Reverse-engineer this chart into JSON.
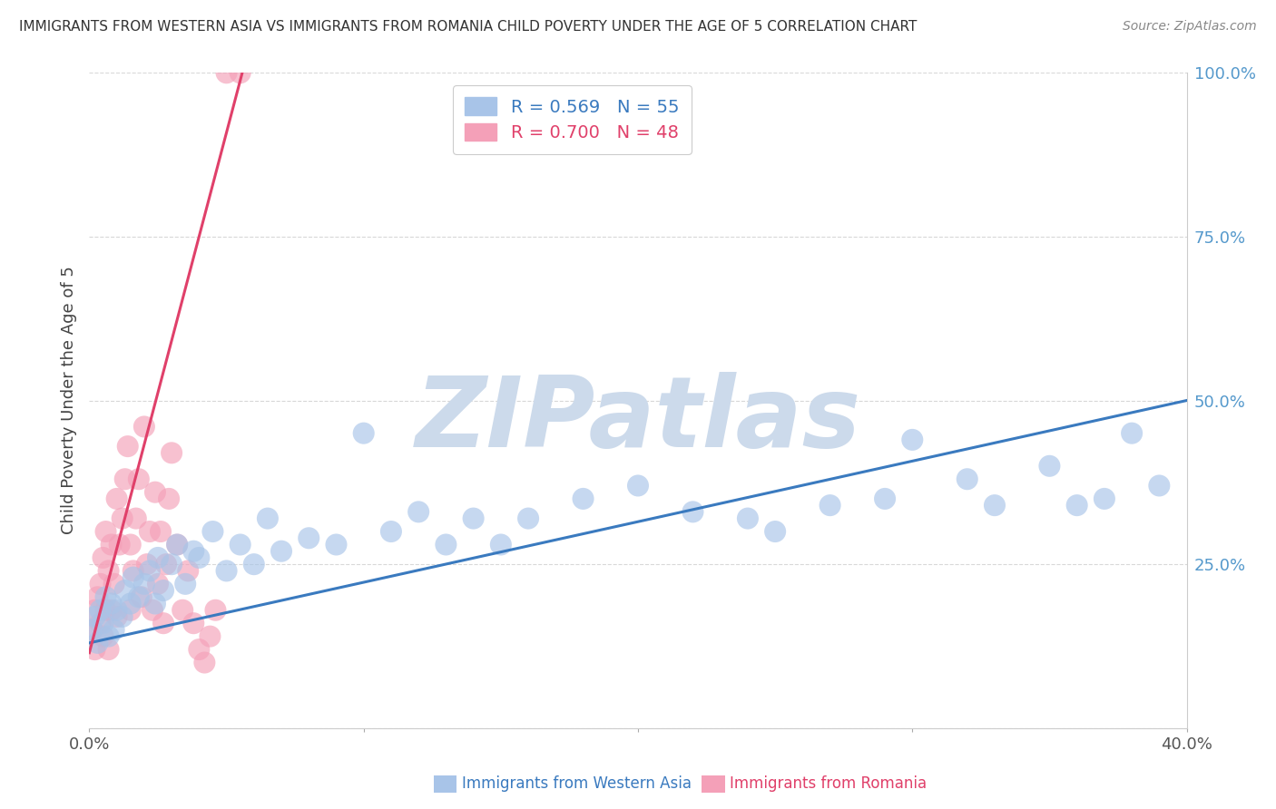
{
  "title": "IMMIGRANTS FROM WESTERN ASIA VS IMMIGRANTS FROM ROMANIA CHILD POVERTY UNDER THE AGE OF 5 CORRELATION CHART",
  "source": "Source: ZipAtlas.com",
  "ylabel_label": "Child Poverty Under the Age of 5",
  "legend_blue_r": "R = 0.569",
  "legend_blue_n": "N = 55",
  "legend_pink_r": "R = 0.700",
  "legend_pink_n": "N = 48",
  "label_blue": "Immigrants from Western Asia",
  "label_pink": "Immigrants from Romania",
  "blue_color": "#a8c4e8",
  "pink_color": "#f4a0b8",
  "blue_line_color": "#3a7abf",
  "pink_line_color": "#e0406a",
  "blue_scatter_x": [
    0.001,
    0.002,
    0.003,
    0.004,
    0.005,
    0.006,
    0.007,
    0.008,
    0.009,
    0.01,
    0.012,
    0.013,
    0.015,
    0.016,
    0.018,
    0.02,
    0.022,
    0.024,
    0.025,
    0.027,
    0.03,
    0.032,
    0.035,
    0.038,
    0.04,
    0.045,
    0.05,
    0.055,
    0.06,
    0.065,
    0.07,
    0.08,
    0.09,
    0.1,
    0.11,
    0.12,
    0.13,
    0.14,
    0.15,
    0.16,
    0.18,
    0.2,
    0.22,
    0.24,
    0.25,
    0.27,
    0.29,
    0.3,
    0.32,
    0.33,
    0.35,
    0.36,
    0.37,
    0.38,
    0.39
  ],
  "blue_scatter_y": [
    0.15,
    0.17,
    0.13,
    0.18,
    0.16,
    0.2,
    0.14,
    0.19,
    0.15,
    0.18,
    0.17,
    0.21,
    0.19,
    0.23,
    0.2,
    0.22,
    0.24,
    0.19,
    0.26,
    0.21,
    0.25,
    0.28,
    0.22,
    0.27,
    0.26,
    0.3,
    0.24,
    0.28,
    0.25,
    0.32,
    0.27,
    0.29,
    0.28,
    0.45,
    0.3,
    0.33,
    0.28,
    0.32,
    0.28,
    0.32,
    0.35,
    0.37,
    0.33,
    0.32,
    0.3,
    0.34,
    0.35,
    0.44,
    0.38,
    0.34,
    0.4,
    0.34,
    0.35,
    0.45,
    0.37
  ],
  "pink_scatter_x": [
    0.001,
    0.002,
    0.002,
    0.003,
    0.004,
    0.004,
    0.005,
    0.005,
    0.006,
    0.006,
    0.007,
    0.007,
    0.008,
    0.008,
    0.009,
    0.01,
    0.01,
    0.011,
    0.012,
    0.013,
    0.014,
    0.015,
    0.015,
    0.016,
    0.017,
    0.018,
    0.019,
    0.02,
    0.021,
    0.022,
    0.023,
    0.024,
    0.025,
    0.026,
    0.027,
    0.028,
    0.029,
    0.03,
    0.032,
    0.034,
    0.036,
    0.038,
    0.04,
    0.042,
    0.044,
    0.046,
    0.05,
    0.055
  ],
  "pink_scatter_y": [
    0.15,
    0.12,
    0.18,
    0.2,
    0.16,
    0.22,
    0.26,
    0.14,
    0.3,
    0.18,
    0.24,
    0.12,
    0.18,
    0.28,
    0.22,
    0.35,
    0.17,
    0.28,
    0.32,
    0.38,
    0.43,
    0.18,
    0.28,
    0.24,
    0.32,
    0.38,
    0.2,
    0.46,
    0.25,
    0.3,
    0.18,
    0.36,
    0.22,
    0.3,
    0.16,
    0.25,
    0.35,
    0.42,
    0.28,
    0.18,
    0.24,
    0.16,
    0.12,
    0.1,
    0.14,
    0.18,
    1.0,
    1.0
  ],
  "blue_line_x": [
    0.0,
    0.4
  ],
  "blue_line_y": [
    0.13,
    0.5
  ],
  "pink_line_x": [
    0.0,
    0.057
  ],
  "pink_line_y": [
    0.115,
    1.02
  ],
  "xlim": [
    0.0,
    0.4
  ],
  "ylim": [
    0.0,
    1.0
  ],
  "yticks": [
    0.0,
    0.25,
    0.5,
    0.75,
    1.0
  ],
  "ytick_labels": [
    "",
    "25.0%",
    "50.0%",
    "75.0%",
    "100.0%"
  ],
  "xticks": [
    0.0,
    0.1,
    0.2,
    0.3,
    0.4
  ],
  "xtick_labels": [
    "0.0%",
    "",
    "",
    "",
    "40.0%"
  ],
  "watermark": "ZIPatlas",
  "watermark_color": "#ccdaeb",
  "background_color": "#ffffff",
  "grid_color": "#d8d8d8",
  "title_color": "#333333",
  "source_color": "#888888",
  "yticklabel_color": "#5599cc",
  "xticklabel_color": "#555555",
  "ylabel_color": "#444444",
  "dot_size": 300,
  "dot_alpha": 0.65,
  "line_width": 2.2
}
